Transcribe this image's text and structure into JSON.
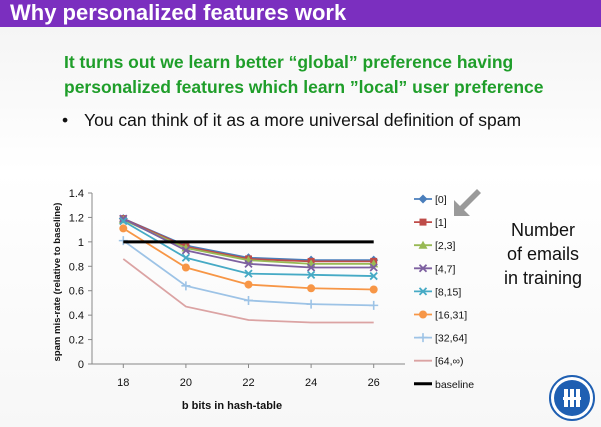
{
  "slide": {
    "title": "Why personalized features work",
    "headline_line1": "It turns out we learn better “global” preference having",
    "headline_line2": "personalized features which learn ”local” user preference",
    "bullet": "You can think of it as a more universal definition of spam",
    "side_note_line1": "Number",
    "side_note_line2": "of emails",
    "side_note_line3": "in training"
  },
  "colors": {
    "title_bar": "#7b2fbf",
    "headline": "#1f9e2a",
    "arrow": "#9a9a9a",
    "logo": "#1f5fb2"
  },
  "icons": {
    "arrow": "down-left-arrow-icon",
    "logo": "university-logo-icon"
  },
  "chart_data": {
    "type": "line",
    "xlabel": "b bits in hash-table",
    "ylabel": "spam mis-rate (relative to baseline)",
    "x": [
      18,
      20,
      22,
      24,
      26
    ],
    "ylim": [
      0,
      1.4
    ],
    "yticks": [
      0,
      0.2,
      0.4,
      0.6,
      0.8,
      1,
      1.2,
      1.4
    ],
    "yticklabels": [
      "0",
      "0.2",
      "0.4",
      "0.6",
      "0.8",
      "1",
      "1.2",
      "1.4"
    ],
    "grid": false,
    "legend_position": "right",
    "series": [
      {
        "name": "[0]",
        "color": "#4a7ebb",
        "marker": "diamond",
        "values": [
          1.19,
          0.97,
          0.87,
          0.85,
          0.85
        ]
      },
      {
        "name": "[1]",
        "color": "#be4b48",
        "marker": "square",
        "values": [
          1.19,
          0.96,
          0.86,
          0.84,
          0.84
        ]
      },
      {
        "name": "[2,3]",
        "color": "#98b954",
        "marker": "triangle",
        "values": [
          1.18,
          0.95,
          0.85,
          0.82,
          0.82
        ]
      },
      {
        "name": "[4,7]",
        "color": "#7d60a0",
        "marker": "x",
        "values": [
          1.19,
          0.93,
          0.82,
          0.79,
          0.79
        ]
      },
      {
        "name": "[8,15]",
        "color": "#46aac5",
        "marker": "x",
        "values": [
          1.17,
          0.87,
          0.74,
          0.73,
          0.72
        ]
      },
      {
        "name": "[16,31]",
        "color": "#f79646",
        "marker": "circle",
        "values": [
          1.11,
          0.79,
          0.65,
          0.62,
          0.61
        ]
      },
      {
        "name": "[32,64]",
        "color": "#9dc3e6",
        "marker": "plus",
        "values": [
          1.01,
          0.64,
          0.52,
          0.49,
          0.48
        ]
      },
      {
        "name": "[64,∞)",
        "color": "#dba3a3",
        "marker": "none",
        "values": [
          0.86,
          0.47,
          0.36,
          0.34,
          0.34
        ]
      },
      {
        "name": "baseline",
        "color": "#000000",
        "marker": "none",
        "baseline": true,
        "values": [
          1,
          1,
          1,
          1,
          1
        ]
      }
    ]
  }
}
